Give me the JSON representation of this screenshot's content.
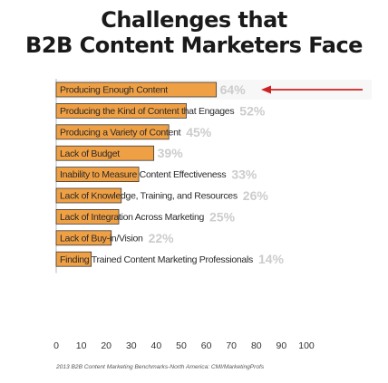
{
  "chart_data": {
    "type": "bar",
    "orientation": "horizontal",
    "title": [
      "Challenges that",
      "B2B Content Marketers Face"
    ],
    "categories": [
      "Producing Enough Content",
      "Producing the Kind of Content that Engages",
      "Producing a Variety of Content",
      "Lack of Budget",
      "Inability to Measure Content Effectiveness",
      "Lack of Knowledge, Training, and Resources",
      "Lack of Integration Across Marketing",
      "Lack of Buy-in/Vision",
      "Finding Trained Content Marketing Professionals"
    ],
    "values": [
      64,
      52,
      45,
      39,
      33,
      26,
      25,
      22,
      14
    ],
    "value_labels": [
      "64%",
      "52%",
      "45%",
      "39%",
      "33%",
      "26%",
      "25%",
      "22%",
      "14%"
    ],
    "xlim": [
      0,
      100
    ],
    "xticks": [
      "0",
      "10",
      "20",
      "30",
      "40",
      "50",
      "60",
      "70",
      "80",
      "90",
      "100"
    ],
    "grid": false,
    "colors": {
      "bar": "#f0a044",
      "bar_stroke": "#3a3a3a",
      "text": "#2a2a2a",
      "value_label": "#cccccc",
      "highlight_row": "#f7f7f7",
      "arrow": "#cc2222"
    },
    "highlighted_category_index": 0,
    "source": "2013 B2B Content Marketing Benchmarks-North America: CMI/MarketingProfs"
  }
}
